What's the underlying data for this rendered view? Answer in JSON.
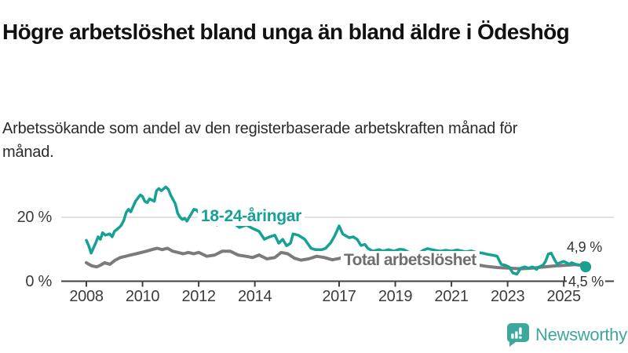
{
  "header": {
    "title": "Högre arbetslöshet bland unga än bland äldre i Ödeshög",
    "subtitle": "Arbetssökande som andel av den registerbaserade arbetskraften månad för månad."
  },
  "chart_data": {
    "type": "line",
    "unit": "%",
    "x_axis": {
      "ticks": [
        2008,
        2010,
        2012,
        2014,
        2017,
        2019,
        2021,
        2023,
        2025
      ],
      "range": [
        2008,
        2025.8
      ],
      "grid": false
    },
    "y_axis": {
      "ticks": [
        {
          "value": 0,
          "label": "0 %"
        },
        {
          "value": 20,
          "label": "20 %"
        }
      ],
      "range": [
        0,
        31
      ],
      "grid": "only 20 % gridline"
    },
    "colors": {
      "axis": "#404040",
      "gridline": "#d9d9d9"
    },
    "series": [
      {
        "id": "total",
        "name": "Total arbetslöshet",
        "color": "#7b7b7b",
        "end_label": "4,9 %",
        "end_value": 4.9,
        "points": [
          [
            2008.0,
            5.8
          ],
          [
            2008.09,
            5.3
          ],
          [
            2008.2,
            4.8
          ],
          [
            2008.37,
            4.5
          ],
          [
            2008.5,
            5.0
          ],
          [
            2008.65,
            5.8
          ],
          [
            2008.84,
            5.3
          ],
          [
            2009.03,
            6.6
          ],
          [
            2009.21,
            7.4
          ],
          [
            2009.4,
            7.8
          ],
          [
            2009.58,
            8.2
          ],
          [
            2009.77,
            8.6
          ],
          [
            2009.96,
            9.0
          ],
          [
            2010.14,
            9.4
          ],
          [
            2010.33,
            9.9
          ],
          [
            2010.52,
            10.3
          ],
          [
            2010.7,
            9.9
          ],
          [
            2010.89,
            10.3
          ],
          [
            2011.07,
            9.4
          ],
          [
            2011.26,
            9.0
          ],
          [
            2011.45,
            8.6
          ],
          [
            2011.63,
            9.0
          ],
          [
            2011.82,
            8.6
          ],
          [
            2012.0,
            9.0
          ],
          [
            2012.29,
            7.8
          ],
          [
            2012.57,
            8.2
          ],
          [
            2012.84,
            9.4
          ],
          [
            2013.12,
            9.4
          ],
          [
            2013.4,
            8.2
          ],
          [
            2013.68,
            7.8
          ],
          [
            2013.92,
            7.4
          ],
          [
            2014.15,
            8.2
          ],
          [
            2014.43,
            7.0
          ],
          [
            2014.71,
            7.4
          ],
          [
            2014.94,
            9.0
          ],
          [
            2015.17,
            8.6
          ],
          [
            2015.41,
            7.2
          ],
          [
            2015.64,
            6.6
          ],
          [
            2015.92,
            7.0
          ],
          [
            2016.2,
            7.8
          ],
          [
            2016.48,
            7.4
          ],
          [
            2016.76,
            6.7
          ],
          [
            2017.04,
            7.2
          ],
          [
            2017.32,
            8.0
          ],
          [
            2017.6,
            8.6
          ],
          [
            2017.9,
            8.0
          ],
          [
            2018.2,
            7.2
          ],
          [
            2018.6,
            6.6
          ],
          [
            2019.0,
            6.0
          ],
          [
            2019.5,
            5.8
          ],
          [
            2020.0,
            6.2
          ],
          [
            2020.4,
            6.6
          ],
          [
            2020.8,
            6.4
          ],
          [
            2021.2,
            6.0
          ],
          [
            2021.6,
            5.5
          ],
          [
            2022.0,
            5.0
          ],
          [
            2022.3,
            4.6
          ],
          [
            2022.62,
            4.3
          ],
          [
            2023.04,
            4.1
          ],
          [
            2023.46,
            3.9
          ],
          [
            2023.88,
            4.1
          ],
          [
            2024.3,
            4.5
          ],
          [
            2024.72,
            4.8
          ],
          [
            2025.1,
            5.0
          ],
          [
            2025.4,
            5.2
          ],
          [
            2025.72,
            4.9
          ]
        ]
      },
      {
        "id": "youth",
        "name": "18-24-åringar",
        "color": "#16a195",
        "end_label": "4,5 %",
        "end_value": 4.5,
        "points": [
          [
            2008.0,
            12.8
          ],
          [
            2008.08,
            11.2
          ],
          [
            2008.17,
            8.8
          ],
          [
            2008.33,
            11.9
          ],
          [
            2008.42,
            13.9
          ],
          [
            2008.5,
            13.1
          ],
          [
            2008.58,
            15.2
          ],
          [
            2008.67,
            14.4
          ],
          [
            2008.83,
            14.8
          ],
          [
            2008.92,
            13.9
          ],
          [
            2009.0,
            15.6
          ],
          [
            2009.17,
            16.8
          ],
          [
            2009.25,
            17.6
          ],
          [
            2009.33,
            19.0
          ],
          [
            2009.42,
            21.5
          ],
          [
            2009.5,
            22.5
          ],
          [
            2009.58,
            21.7
          ],
          [
            2009.75,
            25.0
          ],
          [
            2009.92,
            27.0
          ],
          [
            2010.0,
            26.5
          ],
          [
            2010.08,
            25.0
          ],
          [
            2010.17,
            24.6
          ],
          [
            2010.25,
            25.8
          ],
          [
            2010.42,
            25.0
          ],
          [
            2010.5,
            28.3
          ],
          [
            2010.58,
            29.0
          ],
          [
            2010.67,
            28.3
          ],
          [
            2010.83,
            29.5
          ],
          [
            2010.92,
            28.7
          ],
          [
            2011.0,
            27.0
          ],
          [
            2011.17,
            24.2
          ],
          [
            2011.25,
            21.3
          ],
          [
            2011.33,
            20.1
          ],
          [
            2011.42,
            19.3
          ],
          [
            2011.5,
            19.7
          ],
          [
            2011.58,
            18.8
          ],
          [
            2011.75,
            21.3
          ],
          [
            2011.83,
            22.5
          ],
          [
            2011.92,
            22.3
          ],
          [
            2012.0,
            21.5
          ],
          [
            2012.17,
            20.2
          ],
          [
            2012.33,
            19.6
          ],
          [
            2012.5,
            18.4
          ],
          [
            2012.66,
            17.6
          ],
          [
            2012.83,
            18.8
          ],
          [
            2013.0,
            19.4
          ],
          [
            2013.2,
            18.4
          ],
          [
            2013.45,
            16.8
          ],
          [
            2013.7,
            17.6
          ],
          [
            2013.9,
            16.6
          ],
          [
            2014.15,
            15.6
          ],
          [
            2014.34,
            13.1
          ],
          [
            2014.52,
            13.9
          ],
          [
            2014.71,
            14.4
          ],
          [
            2014.85,
            11.9
          ],
          [
            2014.99,
            13.1
          ],
          [
            2015.13,
            11.1
          ],
          [
            2015.27,
            11.9
          ],
          [
            2015.36,
            14.8
          ],
          [
            2015.55,
            14.4
          ],
          [
            2015.78,
            13.1
          ],
          [
            2016.0,
            10.3
          ],
          [
            2016.15,
            9.9
          ],
          [
            2016.39,
            9.9
          ],
          [
            2016.52,
            10.3
          ],
          [
            2016.7,
            12.0
          ],
          [
            2016.85,
            14.3
          ],
          [
            2017.0,
            17.3
          ],
          [
            2017.13,
            14.8
          ],
          [
            2017.36,
            13.6
          ],
          [
            2017.5,
            13.9
          ],
          [
            2017.64,
            13.1
          ],
          [
            2017.78,
            11.2
          ],
          [
            2017.92,
            11.5
          ],
          [
            2018.02,
            10.3
          ],
          [
            2018.2,
            9.4
          ],
          [
            2018.43,
            9.9
          ],
          [
            2018.57,
            9.4
          ],
          [
            2018.76,
            9.9
          ],
          [
            2018.95,
            9.4
          ],
          [
            2019.15,
            10.0
          ],
          [
            2019.3,
            9.9
          ],
          [
            2019.5,
            9.0
          ],
          [
            2019.68,
            8.2
          ],
          [
            2019.85,
            8.8
          ],
          [
            2020.0,
            9.7
          ],
          [
            2020.15,
            10.2
          ],
          [
            2020.3,
            9.9
          ],
          [
            2020.6,
            9.4
          ],
          [
            2020.8,
            9.7
          ],
          [
            2021.0,
            9.4
          ],
          [
            2021.2,
            9.8
          ],
          [
            2021.5,
            9.2
          ],
          [
            2021.7,
            9.5
          ],
          [
            2021.9,
            9.0
          ],
          [
            2022.1,
            8.8
          ],
          [
            2022.3,
            8.4
          ],
          [
            2022.5,
            8.1
          ],
          [
            2022.63,
            7.8
          ],
          [
            2022.77,
            5.3
          ],
          [
            2022.91,
            5.0
          ],
          [
            2023.05,
            4.5
          ],
          [
            2023.19,
            2.6
          ],
          [
            2023.33,
            2.2
          ],
          [
            2023.47,
            4.1
          ],
          [
            2023.61,
            4.5
          ],
          [
            2023.75,
            4.1
          ],
          [
            2023.89,
            4.5
          ],
          [
            2024.03,
            3.7
          ],
          [
            2024.12,
            4.5
          ],
          [
            2024.26,
            5.0
          ],
          [
            2024.35,
            6.2
          ],
          [
            2024.45,
            8.5
          ],
          [
            2024.55,
            8.8
          ],
          [
            2024.68,
            6.6
          ],
          [
            2024.77,
            5.3
          ],
          [
            2024.86,
            5.8
          ],
          [
            2025.0,
            6.2
          ],
          [
            2025.1,
            5.8
          ],
          [
            2025.19,
            5.3
          ],
          [
            2025.28,
            5.8
          ],
          [
            2025.42,
            5.3
          ],
          [
            2025.56,
            5.0
          ],
          [
            2025.78,
            4.5
          ]
        ]
      }
    ],
    "title": "Högre arbetslöshet bland unga än bland äldre i Ödeshög",
    "xlabel": "",
    "ylabel": ""
  },
  "footer": {
    "brand": "Newsworthy",
    "brand_color": "#3EA79C"
  }
}
